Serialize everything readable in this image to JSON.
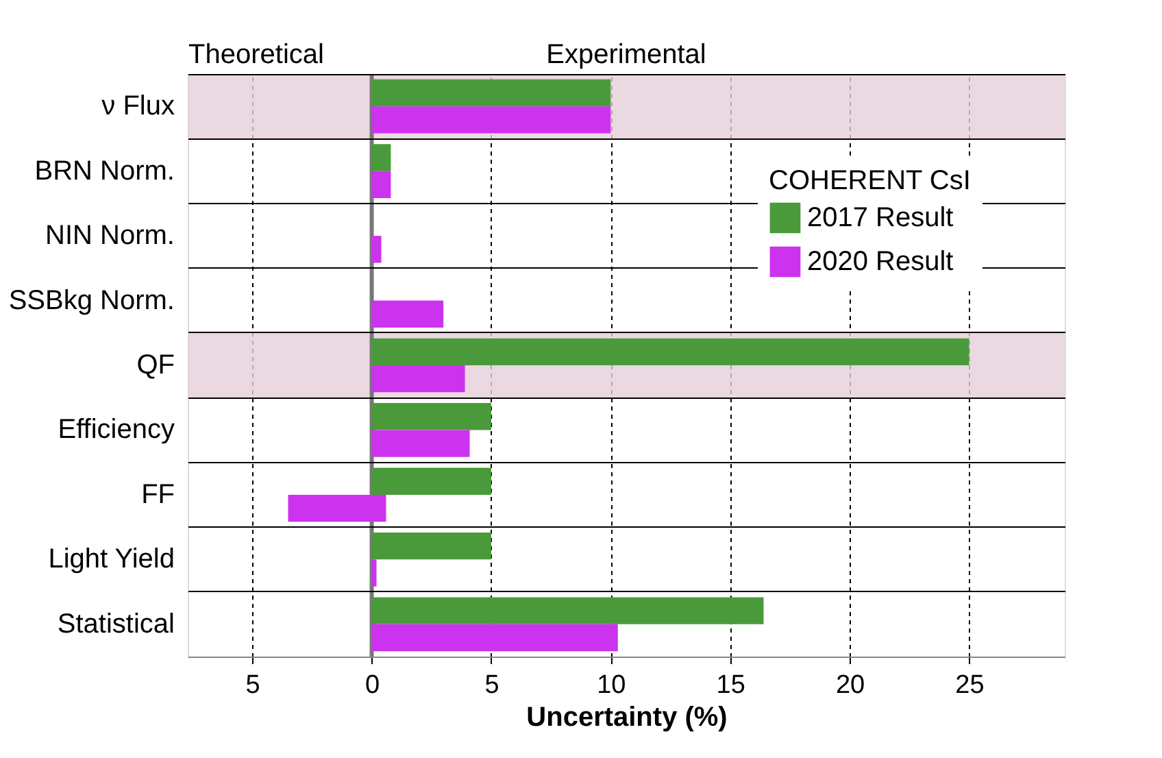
{
  "chart_data": {
    "type": "bar",
    "orientation": "horizontal",
    "xlabel": "Uncertainty (%)",
    "legend_title": "COHERENT CsI",
    "legend": "top right",
    "grid": "x",
    "categories": [
      "ν Flux",
      "BRN Norm.",
      "NIN Norm.",
      "SSBkg Norm.",
      "QF",
      "Efficiency",
      "FF",
      "Light Yield",
      "Statistical"
    ],
    "series": [
      {
        "name": "2017 Result",
        "color": "#4a9a3c",
        "values": [
          10,
          0.8,
          null,
          null,
          25,
          5.0,
          5.0,
          5.0,
          16.4
        ]
      },
      {
        "name": "2020 Result",
        "color": "#cc33ee",
        "values": [
          10,
          0.8,
          0.4,
          3.0,
          3.9,
          4.1,
          4.1,
          0.2,
          10.3
        ],
        "base": [
          0,
          0,
          0,
          0,
          0,
          0,
          -3.5,
          0,
          0
        ]
      }
    ],
    "xlim": [
      -7.7,
      29
    ],
    "xticks": [
      {
        "value": -5,
        "label": "5"
      },
      0,
      5,
      10,
      15,
      20,
      25
    ],
    "ref_lines": [
      {
        "axis": "x",
        "value": 0,
        "color": "#777777"
      }
    ],
    "bands": [
      {
        "axis": "y",
        "from": "ν Flux",
        "to": "ν Flux",
        "color": "#e5d0d8"
      },
      {
        "axis": "y",
        "from": "QF",
        "to": "QF",
        "color": "#e5d0d8"
      }
    ],
    "annotations": [
      "Theoretical",
      "Experimental"
    ]
  }
}
